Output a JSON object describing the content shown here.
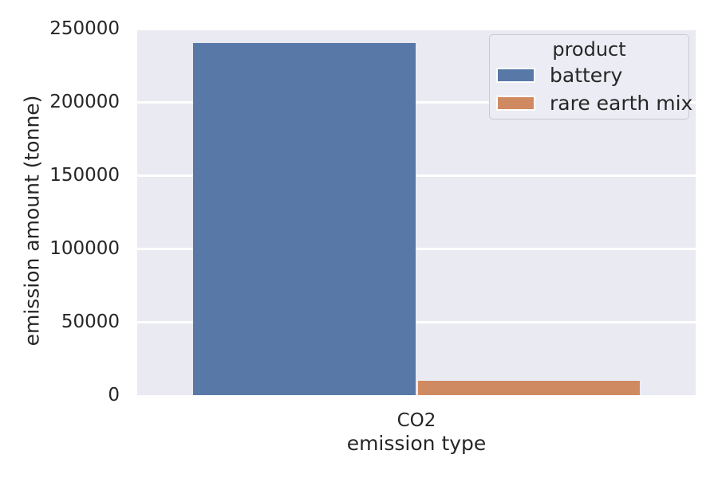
{
  "chart_data": {
    "type": "bar",
    "title": "",
    "xlabel": "emission type",
    "ylabel": "emission amount (tonne)",
    "categories": [
      "CO2"
    ],
    "series": [
      {
        "name": "battery",
        "color": "#5878a8",
        "values": [
          240000
        ]
      },
      {
        "name": "rare earth mix",
        "color": "#d08a62",
        "values": [
          10000
        ]
      }
    ],
    "ylim": [
      0,
      250000
    ],
    "yticks": [
      0,
      50000,
      100000,
      150000,
      200000,
      250000
    ],
    "ytick_labels": [
      "0",
      "50000",
      "100000",
      "150000",
      "200000",
      "250000"
    ],
    "grid": true,
    "legend": {
      "title": "product",
      "position": "upper right"
    }
  },
  "colors": {
    "plot_bg": "#eaeaf2",
    "grid": "#ffffff",
    "text": "#262626",
    "legend_bg": "#ececf4",
    "legend_border": "#c9c9d3",
    "swatch_edge": "#ffffff"
  }
}
